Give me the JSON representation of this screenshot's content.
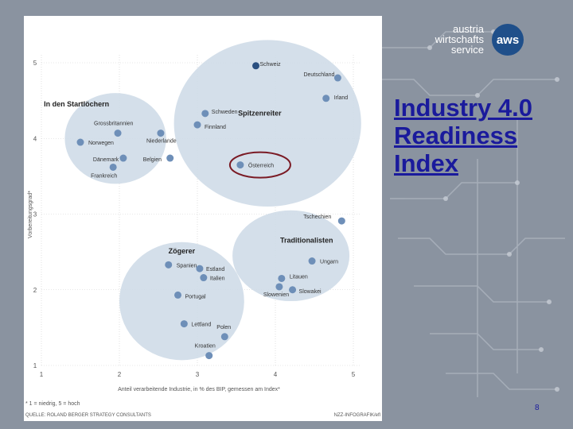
{
  "slide": {
    "title_lines": [
      "Industry 4.0",
      "Readiness",
      "Index"
    ],
    "page_number": "8",
    "logo": {
      "line1": "austria",
      "line2": "wirtschafts",
      "line3": "service",
      "badge": "aws"
    }
  },
  "colors": {
    "point": "#6e8fb8",
    "bubble": "#cfdbe8",
    "highlight_ring": "#7a1a24",
    "grid": "#cfcfcf"
  },
  "chart_data": {
    "type": "scatter",
    "xlabel": "Anteil verarbeitende Industrie, in % des BIP, gemessen am Index*",
    "ylabel": "Vorbereitungsgrad*",
    "footnote": "* 1 = niedrig, 5 = hoch",
    "source": "QUELLE: ROLAND BERGER STRATEGY CONSULTANTS",
    "credit": "NZZ-INFOGRAFIK/efl",
    "xlim": [
      1,
      5
    ],
    "ylim": [
      1,
      5
    ],
    "x_ticks": [
      1,
      2,
      3,
      4,
      5
    ],
    "y_ticks": [
      1,
      2,
      3,
      4,
      5
    ],
    "clusters": [
      {
        "name": "Spitzenreiter",
        "cx": 3.9,
        "cy": 4.2,
        "rx": 1.2,
        "ry": 1.1
      },
      {
        "name": "In den Startlöchern",
        "cx": 1.95,
        "cy": 4.0,
        "rx": 0.65,
        "ry": 0.6
      },
      {
        "name": "Traditionalisten",
        "cx": 4.2,
        "cy": 2.45,
        "rx": 0.75,
        "ry": 0.6
      },
      {
        "name": "Zögerer",
        "cx": 2.8,
        "cy": 1.85,
        "rx": 0.8,
        "ry": 0.78
      }
    ],
    "points": [
      {
        "label": "Schweiz",
        "x": 3.75,
        "y": 4.96,
        "highlight": false,
        "dark": true
      },
      {
        "label": "Deutschland",
        "x": 4.8,
        "y": 4.8,
        "highlight": false,
        "dark": false
      },
      {
        "label": "Irland",
        "x": 4.65,
        "y": 4.53,
        "highlight": false,
        "dark": false
      },
      {
        "label": "Schweden",
        "x": 3.1,
        "y": 4.33,
        "highlight": false,
        "dark": false
      },
      {
        "label": "Finnland",
        "x": 3.0,
        "y": 4.18,
        "highlight": false,
        "dark": false
      },
      {
        "label": "Österreich",
        "x": 3.55,
        "y": 3.65,
        "highlight": true,
        "dark": false
      },
      {
        "label": "Grossbritannien",
        "x": 1.98,
        "y": 4.07,
        "highlight": false,
        "dark": false
      },
      {
        "label": "Norwegen",
        "x": 1.5,
        "y": 3.95,
        "highlight": false,
        "dark": false
      },
      {
        "label": "Niederlande",
        "x": 2.53,
        "y": 4.07,
        "highlight": false,
        "dark": false
      },
      {
        "label": "Dänemark",
        "x": 2.05,
        "y": 3.74,
        "highlight": false,
        "dark": false
      },
      {
        "label": "Belgien",
        "x": 2.65,
        "y": 3.74,
        "highlight": false,
        "dark": false
      },
      {
        "label": "Frankreich",
        "x": 1.92,
        "y": 3.62,
        "highlight": false,
        "dark": false
      },
      {
        "label": "Tschechien",
        "x": 4.85,
        "y": 2.91,
        "highlight": false,
        "dark": false
      },
      {
        "label": "Ungarn",
        "x": 4.47,
        "y": 2.38,
        "highlight": false,
        "dark": false
      },
      {
        "label": "Litauen",
        "x": 4.08,
        "y": 2.15,
        "highlight": false,
        "dark": false
      },
      {
        "label": "Slowenien",
        "x": 4.05,
        "y": 2.04,
        "highlight": false,
        "dark": false
      },
      {
        "label": "Slowakei",
        "x": 4.22,
        "y": 2.0,
        "highlight": false,
        "dark": false
      },
      {
        "label": "Spanien",
        "x": 2.63,
        "y": 2.33,
        "highlight": false,
        "dark": false
      },
      {
        "label": "Estland",
        "x": 3.03,
        "y": 2.28,
        "highlight": false,
        "dark": false
      },
      {
        "label": "Italien",
        "x": 3.08,
        "y": 2.16,
        "highlight": false,
        "dark": false
      },
      {
        "label": "Portugal",
        "x": 2.75,
        "y": 1.93,
        "highlight": false,
        "dark": false
      },
      {
        "label": "Lettland",
        "x": 2.83,
        "y": 1.55,
        "highlight": false,
        "dark": false
      },
      {
        "label": "Polen",
        "x": 3.35,
        "y": 1.38,
        "highlight": false,
        "dark": false
      },
      {
        "label": "Kroatien",
        "x": 3.15,
        "y": 1.13,
        "highlight": false,
        "dark": false
      }
    ]
  }
}
